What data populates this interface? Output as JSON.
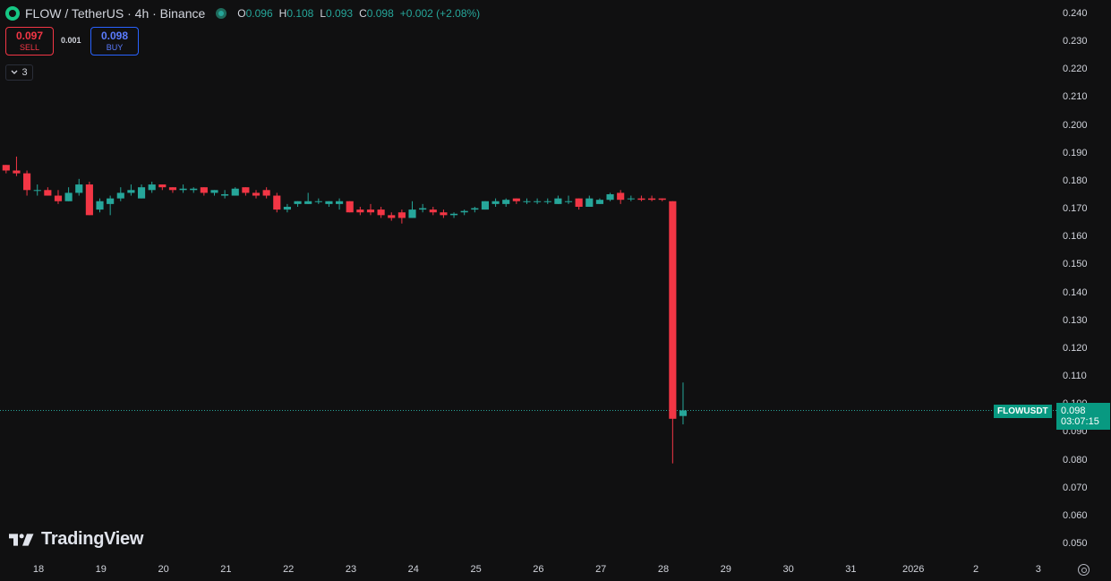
{
  "header": {
    "title": "FLOW / TetherUS · 4h · Binance",
    "ohlc": [
      {
        "k": "O",
        "v": "0.096"
      },
      {
        "k": "H",
        "v": "0.108"
      },
      {
        "k": "L",
        "v": "0.093"
      },
      {
        "k": "C",
        "v": "0.098"
      },
      {
        "k": "",
        "v": "+0.002 (+2.08%)"
      }
    ]
  },
  "trade": {
    "sell_price": "0.097",
    "sell_label": "SELL",
    "spread": "0.001",
    "buy_price": "0.098",
    "buy_label": "BUY"
  },
  "indicators_toggle": "3",
  "logo_text": "TradingView",
  "price_scale": {
    "ticker": "FLOWUSDT",
    "last_price": "0.098",
    "countdown": "03:07:15"
  },
  "colors": {
    "up": "#26a69a",
    "down": "#f23645",
    "bg": "#101011"
  },
  "chart_data": {
    "type": "candlestick",
    "symbol": "FLOW / TetherUS",
    "interval": "4h",
    "exchange": "Binance",
    "ylim": [
      0.045,
      0.245
    ],
    "y_ticks": [
      "0.240",
      "0.230",
      "0.220",
      "0.210",
      "0.200",
      "0.190",
      "0.180",
      "0.170",
      "0.160",
      "0.150",
      "0.140",
      "0.130",
      "0.120",
      "0.110",
      "0.100",
      "0.090",
      "0.080",
      "0.070",
      "0.060",
      "0.050"
    ],
    "x_ticks": [
      "18",
      "19",
      "20",
      "21",
      "22",
      "23",
      "24",
      "25",
      "26",
      "27",
      "28",
      "29",
      "30",
      "31",
      "2026",
      "2",
      "3"
    ],
    "candles": [
      [
        0.186,
        0.186,
        0.183,
        0.184
      ],
      [
        0.184,
        0.189,
        0.182,
        0.183
      ],
      [
        0.183,
        0.184,
        0.175,
        0.177
      ],
      [
        0.177,
        0.179,
        0.175,
        0.177
      ],
      [
        0.177,
        0.178,
        0.175,
        0.175
      ],
      [
        0.175,
        0.177,
        0.172,
        0.173
      ],
      [
        0.173,
        0.178,
        0.173,
        0.176
      ],
      [
        0.176,
        0.181,
        0.175,
        0.179
      ],
      [
        0.179,
        0.18,
        0.168,
        0.168
      ],
      [
        0.17,
        0.174,
        0.169,
        0.173
      ],
      [
        0.172,
        0.175,
        0.168,
        0.174
      ],
      [
        0.174,
        0.178,
        0.173,
        0.176
      ],
      [
        0.176,
        0.179,
        0.175,
        0.177
      ],
      [
        0.174,
        0.179,
        0.174,
        0.178
      ],
      [
        0.177,
        0.18,
        0.176,
        0.179
      ],
      [
        0.179,
        0.179,
        0.177,
        0.178
      ],
      [
        0.178,
        0.178,
        0.176,
        0.177
      ],
      [
        0.177,
        0.179,
        0.176,
        0.1775
      ],
      [
        0.177,
        0.178,
        0.176,
        0.1775
      ],
      [
        0.178,
        0.178,
        0.175,
        0.176
      ],
      [
        0.176,
        0.177,
        0.175,
        0.177
      ],
      [
        0.175,
        0.177,
        0.174,
        0.1755
      ],
      [
        0.175,
        0.178,
        0.175,
        0.1775
      ],
      [
        0.178,
        0.178,
        0.175,
        0.176
      ],
      [
        0.176,
        0.177,
        0.174,
        0.175
      ],
      [
        0.177,
        0.178,
        0.174,
        0.175
      ],
      [
        0.175,
        0.176,
        0.169,
        0.17
      ],
      [
        0.17,
        0.172,
        0.169,
        0.171
      ],
      [
        0.172,
        0.173,
        0.171,
        0.173
      ],
      [
        0.172,
        0.176,
        0.172,
        0.173
      ],
      [
        0.173,
        0.174,
        0.172,
        0.173
      ],
      [
        0.172,
        0.173,
        0.171,
        0.173
      ],
      [
        0.172,
        0.174,
        0.17,
        0.173
      ],
      [
        0.173,
        0.173,
        0.169,
        0.169
      ],
      [
        0.17,
        0.171,
        0.168,
        0.169
      ],
      [
        0.17,
        0.172,
        0.168,
        0.169
      ],
      [
        0.17,
        0.171,
        0.167,
        0.168
      ],
      [
        0.168,
        0.169,
        0.166,
        0.167
      ],
      [
        0.169,
        0.17,
        0.165,
        0.167
      ],
      [
        0.167,
        0.173,
        0.167,
        0.17
      ],
      [
        0.17,
        0.172,
        0.169,
        0.1705
      ],
      [
        0.17,
        0.171,
        0.168,
        0.169
      ],
      [
        0.169,
        0.17,
        0.167,
        0.168
      ],
      [
        0.168,
        0.169,
        0.167,
        0.1685
      ],
      [
        0.169,
        0.17,
        0.168,
        0.1695
      ],
      [
        0.17,
        0.171,
        0.169,
        0.1705
      ],
      [
        0.17,
        0.173,
        0.17,
        0.173
      ],
      [
        0.172,
        0.174,
        0.171,
        0.173
      ],
      [
        0.172,
        0.174,
        0.171,
        0.1735
      ],
      [
        0.174,
        0.174,
        0.172,
        0.173
      ],
      [
        0.173,
        0.174,
        0.172,
        0.173
      ],
      [
        0.173,
        0.174,
        0.172,
        0.173
      ],
      [
        0.173,
        0.174,
        0.172,
        0.173
      ],
      [
        0.172,
        0.175,
        0.172,
        0.174
      ],
      [
        0.173,
        0.175,
        0.172,
        0.173
      ],
      [
        0.174,
        0.174,
        0.17,
        0.171
      ],
      [
        0.171,
        0.175,
        0.171,
        0.174
      ],
      [
        0.172,
        0.174,
        0.172,
        0.1735
      ],
      [
        0.1735,
        0.176,
        0.173,
        0.1755
      ],
      [
        0.176,
        0.177,
        0.172,
        0.1735
      ],
      [
        0.174,
        0.175,
        0.173,
        0.174
      ],
      [
        0.174,
        0.175,
        0.173,
        0.1735
      ],
      [
        0.174,
        0.175,
        0.173,
        0.1735
      ],
      [
        0.174,
        0.174,
        0.173,
        0.1735
      ],
      [
        0.173,
        0.173,
        0.079,
        0.095
      ],
      [
        0.096,
        0.108,
        0.093,
        0.098
      ]
    ],
    "last_price": 0.098
  }
}
